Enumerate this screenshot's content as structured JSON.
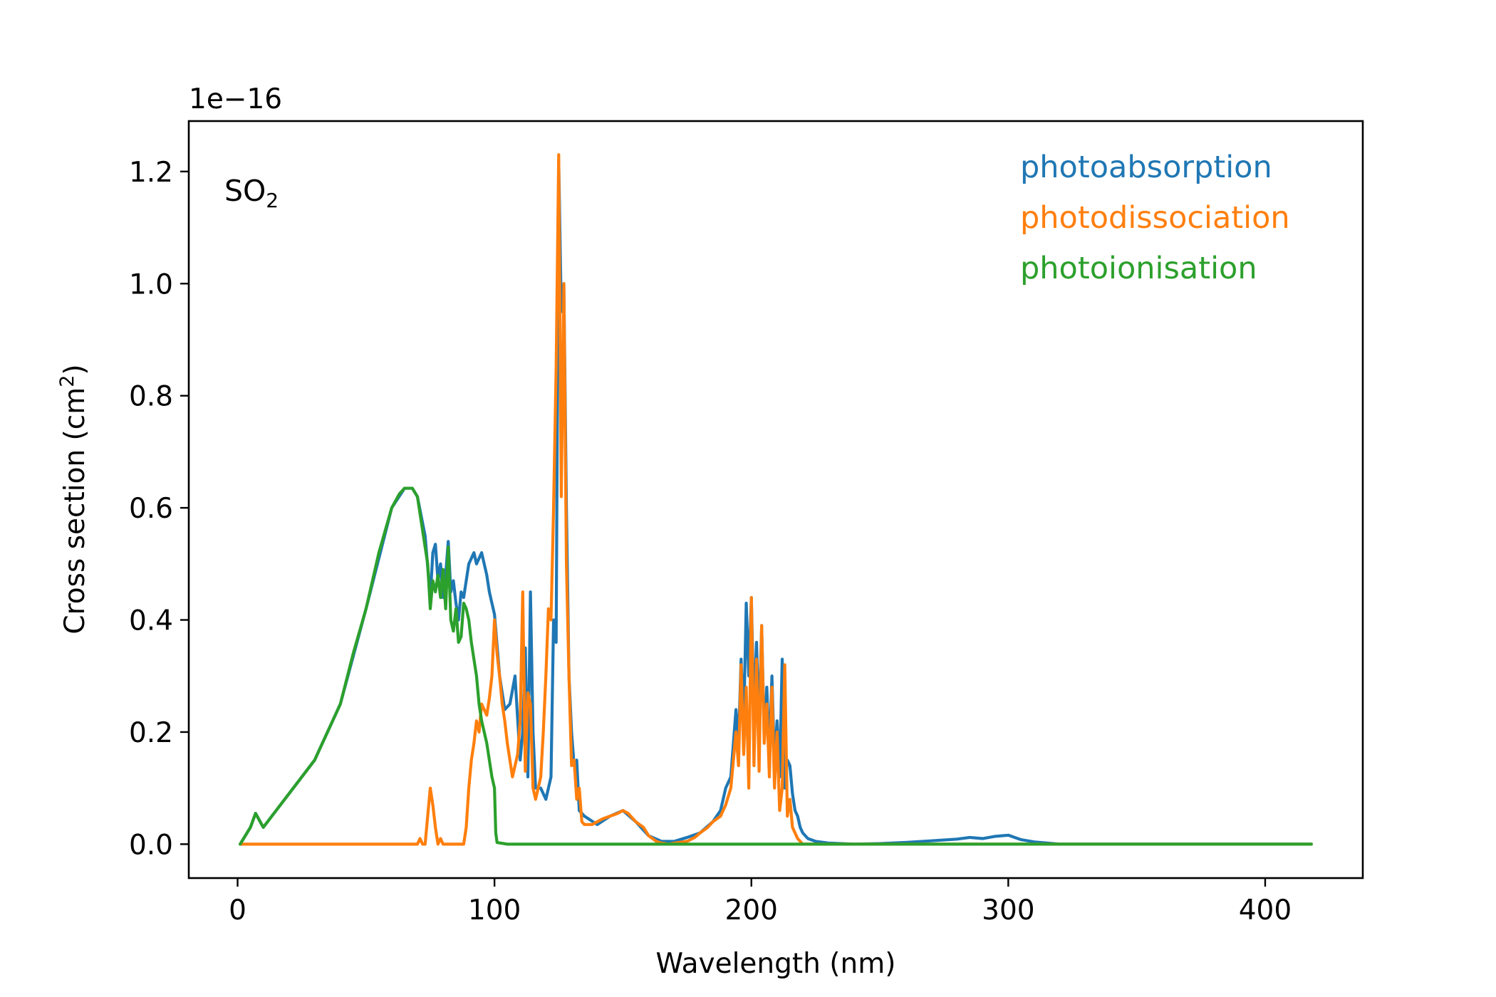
{
  "chart_data": {
    "type": "line",
    "title": "",
    "annotation": {
      "base": "SO",
      "subscript": "2"
    },
    "xlabel": "Wavelength (nm)",
    "ylabel": {
      "prefix": "Cross section (cm",
      "superscript": "2",
      "suffix": ")"
    },
    "y_offset_label": "1e−16",
    "y_scale_factor": 1e-16,
    "xlim": [
      -19,
      438
    ],
    "ylim": [
      -0.0605,
      1.29
    ],
    "xticks": [
      0,
      100,
      200,
      300,
      400
    ],
    "xtick_labels": [
      "0",
      "100",
      "200",
      "300",
      "400"
    ],
    "yticks": [
      0.0,
      0.2,
      0.4,
      0.6,
      0.8,
      1.0,
      1.2
    ],
    "ytick_labels": [
      "0.0",
      "0.2",
      "0.4",
      "0.6",
      "0.8",
      "1.0",
      "1.2"
    ],
    "grid": false,
    "legend_placement": "top-right",
    "series": [
      {
        "name": "photoabsorption",
        "color": "#1f77b4",
        "x": [
          1,
          5,
          7,
          10,
          20,
          30,
          40,
          50,
          60,
          65,
          68,
          70,
          73,
          75,
          76,
          77,
          78,
          79,
          80,
          81,
          82,
          83,
          84,
          85,
          86,
          87,
          88,
          89,
          90,
          91,
          92,
          93,
          94,
          95,
          96,
          97,
          98,
          100,
          102,
          104,
          106,
          108,
          110,
          111,
          112,
          113,
          114,
          115,
          116,
          118,
          120,
          122,
          123,
          124,
          125,
          126,
          127,
          128,
          129,
          130,
          131,
          132,
          133,
          135,
          140,
          145,
          150,
          155,
          160,
          165,
          170,
          175,
          180,
          185,
          188,
          190,
          192,
          194,
          195,
          196,
          197,
          198,
          199,
          200,
          201,
          202,
          203,
          204,
          205,
          206,
          207,
          208,
          209,
          210,
          211,
          212,
          213,
          214,
          215,
          216,
          217,
          218,
          219,
          220,
          222,
          225,
          230,
          240,
          250,
          260,
          270,
          280,
          285,
          290,
          295,
          300,
          305,
          310,
          320,
          340,
          360,
          380,
          400,
          418
        ],
        "values": [
          0.0,
          0.03,
          0.055,
          0.03,
          0.09,
          0.15,
          0.25,
          0.42,
          0.6,
          0.635,
          0.635,
          0.62,
          0.55,
          0.44,
          0.52,
          0.535,
          0.47,
          0.5,
          0.44,
          0.48,
          0.54,
          0.45,
          0.47,
          0.43,
          0.4,
          0.45,
          0.44,
          0.47,
          0.5,
          0.51,
          0.52,
          0.5,
          0.51,
          0.52,
          0.5,
          0.48,
          0.45,
          0.41,
          0.3,
          0.24,
          0.25,
          0.3,
          0.15,
          0.2,
          0.35,
          0.12,
          0.45,
          0.2,
          0.1,
          0.1,
          0.08,
          0.12,
          0.4,
          0.36,
          1.22,
          0.95,
          1.0,
          0.6,
          0.3,
          0.2,
          0.14,
          0.15,
          0.06,
          0.05,
          0.035,
          0.05,
          0.06,
          0.04,
          0.015,
          0.005,
          0.005,
          0.012,
          0.02,
          0.04,
          0.06,
          0.1,
          0.12,
          0.24,
          0.18,
          0.33,
          0.21,
          0.43,
          0.3,
          0.44,
          0.23,
          0.36,
          0.21,
          0.39,
          0.19,
          0.28,
          0.16,
          0.3,
          0.14,
          0.22,
          0.12,
          0.33,
          0.1,
          0.15,
          0.14,
          0.09,
          0.06,
          0.05,
          0.03,
          0.02,
          0.01,
          0.005,
          0.002,
          0.0,
          0.001,
          0.003,
          0.006,
          0.009,
          0.012,
          0.01,
          0.014,
          0.016,
          0.008,
          0.004,
          0.0,
          0.0,
          0.0,
          0.0,
          0.0,
          0.0
        ]
      },
      {
        "name": "photodissociation",
        "color": "#ff7f0e",
        "x": [
          1,
          70,
          71,
          72,
          73,
          74,
          75,
          76,
          77,
          78,
          79,
          80,
          82,
          84,
          86,
          88,
          89,
          90,
          91,
          92,
          93,
          94,
          95,
          96,
          97,
          98,
          99,
          100,
          101,
          102,
          103,
          104,
          105,
          106,
          107,
          108,
          109,
          110,
          111,
          112,
          113,
          114,
          115,
          116,
          117,
          118,
          119,
          120,
          121,
          122,
          123,
          124,
          125,
          126,
          127,
          128,
          129,
          130,
          131,
          132,
          133,
          134,
          135,
          138,
          140,
          142,
          145,
          148,
          150,
          152,
          155,
          158,
          160,
          163,
          165,
          168,
          170,
          175,
          178,
          180,
          183,
          185,
          188,
          190,
          192,
          194,
          195,
          196,
          197,
          198,
          199,
          200,
          201,
          202,
          203,
          204,
          205,
          206,
          207,
          208,
          209,
          210,
          211,
          212,
          213,
          214,
          215,
          216,
          217,
          218,
          219,
          220,
          222,
          225,
          230,
          240,
          250,
          260,
          270,
          280,
          290,
          300,
          310,
          320,
          340,
          360,
          380,
          400,
          418
        ],
        "values": [
          0.0,
          0.0,
          0.01,
          0.0,
          0.0,
          0.05,
          0.1,
          0.07,
          0.03,
          0.0,
          0.01,
          0.0,
          0.0,
          0.0,
          0.0,
          0.0,
          0.03,
          0.1,
          0.15,
          0.18,
          0.22,
          0.2,
          0.25,
          0.24,
          0.23,
          0.26,
          0.3,
          0.4,
          0.34,
          0.3,
          0.25,
          0.22,
          0.18,
          0.15,
          0.12,
          0.14,
          0.16,
          0.22,
          0.45,
          0.13,
          0.27,
          0.25,
          0.1,
          0.08,
          0.1,
          0.12,
          0.2,
          0.3,
          0.42,
          0.4,
          0.6,
          0.85,
          1.23,
          0.62,
          1.0,
          0.5,
          0.3,
          0.14,
          0.15,
          0.08,
          0.1,
          0.04,
          0.035,
          0.035,
          0.04,
          0.045,
          0.05,
          0.055,
          0.06,
          0.055,
          0.04,
          0.03,
          0.015,
          0.005,
          0.002,
          0.0,
          0.002,
          0.005,
          0.012,
          0.02,
          0.03,
          0.04,
          0.05,
          0.07,
          0.1,
          0.2,
          0.14,
          0.32,
          0.16,
          0.28,
          0.1,
          0.44,
          0.14,
          0.33,
          0.13,
          0.39,
          0.18,
          0.25,
          0.12,
          0.28,
          0.1,
          0.2,
          0.06,
          0.1,
          0.32,
          0.05,
          0.08,
          0.03,
          0.02,
          0.01,
          0.005,
          0.0,
          0.0,
          0.0,
          0.0,
          0.0,
          0.0,
          0.0,
          0.0,
          0.0,
          0.0,
          0.0,
          0.0,
          0.0,
          0.0,
          0.0,
          0.0,
          0.0,
          0.0
        ]
      },
      {
        "name": "photoionisation",
        "color": "#2ca02c",
        "x": [
          1,
          5,
          7,
          10,
          15,
          20,
          25,
          30,
          35,
          40,
          45,
          50,
          55,
          60,
          63,
          65,
          68,
          70,
          72,
          74,
          75,
          76,
          77,
          78,
          79,
          80,
          81,
          82,
          83,
          84,
          85,
          86,
          87,
          88,
          89,
          90,
          91,
          92,
          93,
          94,
          95,
          96,
          97,
          98,
          99,
          100,
          100.5,
          101,
          105,
          120,
          150,
          200,
          250,
          300,
          350,
          400,
          418
        ],
        "values": [
          0.0,
          0.03,
          0.055,
          0.03,
          0.06,
          0.09,
          0.12,
          0.15,
          0.2,
          0.25,
          0.34,
          0.42,
          0.52,
          0.6,
          0.625,
          0.635,
          0.635,
          0.62,
          0.56,
          0.5,
          0.42,
          0.47,
          0.45,
          0.48,
          0.44,
          0.49,
          0.42,
          0.53,
          0.4,
          0.38,
          0.42,
          0.36,
          0.37,
          0.43,
          0.42,
          0.4,
          0.36,
          0.33,
          0.3,
          0.25,
          0.22,
          0.2,
          0.18,
          0.15,
          0.12,
          0.1,
          0.02,
          0.003,
          0.0,
          0.0,
          0.0,
          0.0,
          0.0,
          0.0,
          0.0,
          0.0,
          0.0
        ]
      }
    ]
  }
}
